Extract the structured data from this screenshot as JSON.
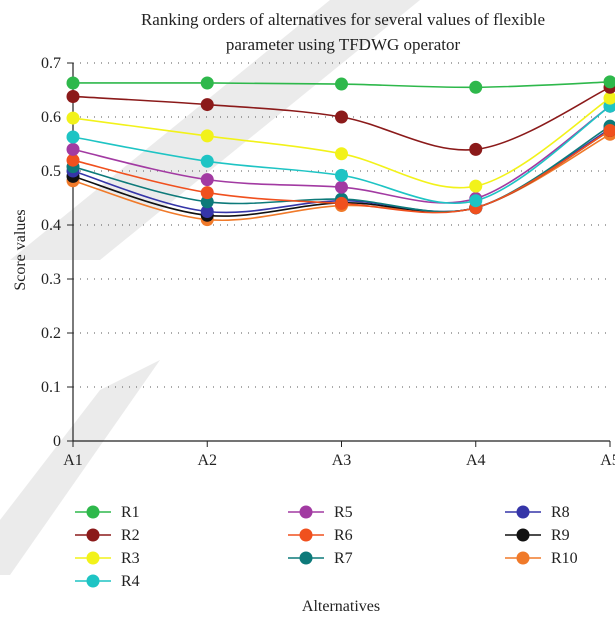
{
  "chart_data": {
    "type": "line",
    "title": "Ranking orders of alternatives for several values of flexible parameter using TFDWG operator",
    "title_lines": [
      "Ranking orders of alternatives for several values of flexible",
      "parameter using TFDWG operator"
    ],
    "xlabel": "Alternatives",
    "ylabel": "Score values",
    "categories": [
      "A1",
      "A2",
      "A3",
      "A4",
      "A5"
    ],
    "ylim": [
      0,
      0.7
    ],
    "yticks": [
      "0",
      "0.1",
      "0.2",
      "0.3",
      "0.4",
      "0.5",
      "0.6",
      "0.7"
    ],
    "grid": "dotted horizontal",
    "legend_position": "bottom",
    "series": [
      {
        "name": "R1",
        "color": "#2eb84b",
        "values": [
          0.663,
          0.663,
          0.661,
          0.655,
          0.665
        ]
      },
      {
        "name": "R2",
        "color": "#8b1a1a",
        "values": [
          0.638,
          0.623,
          0.6,
          0.54,
          0.655
        ]
      },
      {
        "name": "R3",
        "color": "#f2f21a",
        "values": [
          0.598,
          0.565,
          0.532,
          0.472,
          0.635
        ]
      },
      {
        "name": "R4",
        "color": "#1ec4c4",
        "values": [
          0.563,
          0.518,
          0.492,
          0.445,
          0.62
        ]
      },
      {
        "name": "R5",
        "color": "#a23aa2",
        "values": [
          0.54,
          0.484,
          0.47,
          0.449,
          0.62
        ]
      },
      {
        "name": "R6",
        "color": "#f0501e",
        "values": [
          0.52,
          0.46,
          0.44,
          0.432,
          0.575
        ]
      },
      {
        "name": "R7",
        "color": "#0d7a7a",
        "values": [
          0.508,
          0.443,
          0.448,
          0.432,
          0.583
        ]
      },
      {
        "name": "R8",
        "color": "#3535a8",
        "values": [
          0.5,
          0.425,
          0.445,
          0.432,
          0.578
        ]
      },
      {
        "name": "R9",
        "color": "#111111",
        "values": [
          0.49,
          0.418,
          0.441,
          0.432,
          0.575
        ]
      },
      {
        "name": "R10",
        "color": "#f07a2a",
        "values": [
          0.482,
          0.41,
          0.436,
          0.432,
          0.568
        ]
      }
    ]
  }
}
